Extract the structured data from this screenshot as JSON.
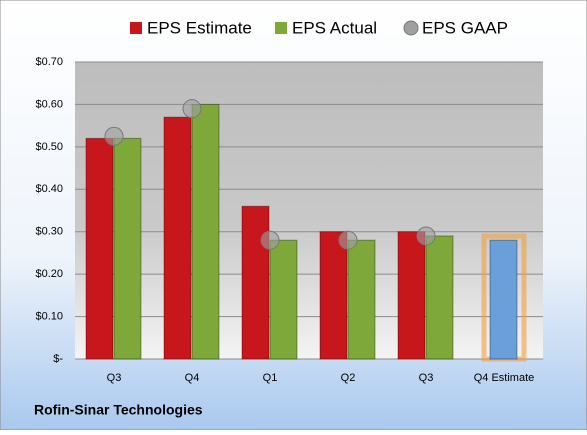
{
  "chart_data": {
    "type": "bar",
    "categories": [
      "Q3",
      "Q4",
      "Q1",
      "Q2",
      "Q3",
      "Q4 Estimate"
    ],
    "series": [
      {
        "name": "EPS Estimate",
        "color": "#c8161d",
        "values": [
          0.52,
          0.57,
          0.36,
          0.3,
          0.3,
          0.28
        ],
        "point_colors": [
          "#c8161d",
          "#c8161d",
          "#c8161d",
          "#c8161d",
          "#c8161d",
          "#6a9fd9"
        ]
      },
      {
        "name": "EPS Actual",
        "color": "#7fa83a",
        "values": [
          0.52,
          0.6,
          0.28,
          0.28,
          0.29,
          null
        ]
      },
      {
        "name": "EPS GAAP",
        "type": "scatter",
        "color": "#a0a0a0",
        "values": [
          0.525,
          0.59,
          0.28,
          0.28,
          0.29,
          null
        ]
      }
    ],
    "ylim": [
      0,
      0.7
    ],
    "yticks": [
      {
        "value": 0,
        "label": "$-"
      },
      {
        "value": 0.1,
        "label": "$0.10"
      },
      {
        "value": 0.2,
        "label": "$0.20"
      },
      {
        "value": 0.3,
        "label": "$0.30"
      },
      {
        "value": 0.4,
        "label": "$0.40"
      },
      {
        "value": 0.5,
        "label": "$0.50"
      },
      {
        "value": 0.6,
        "label": "$0.60"
      },
      {
        "value": 0.7,
        "label": "$0.70"
      }
    ],
    "grid": true,
    "legend": "top",
    "footer": "Rofin-Sinar Technologies"
  }
}
